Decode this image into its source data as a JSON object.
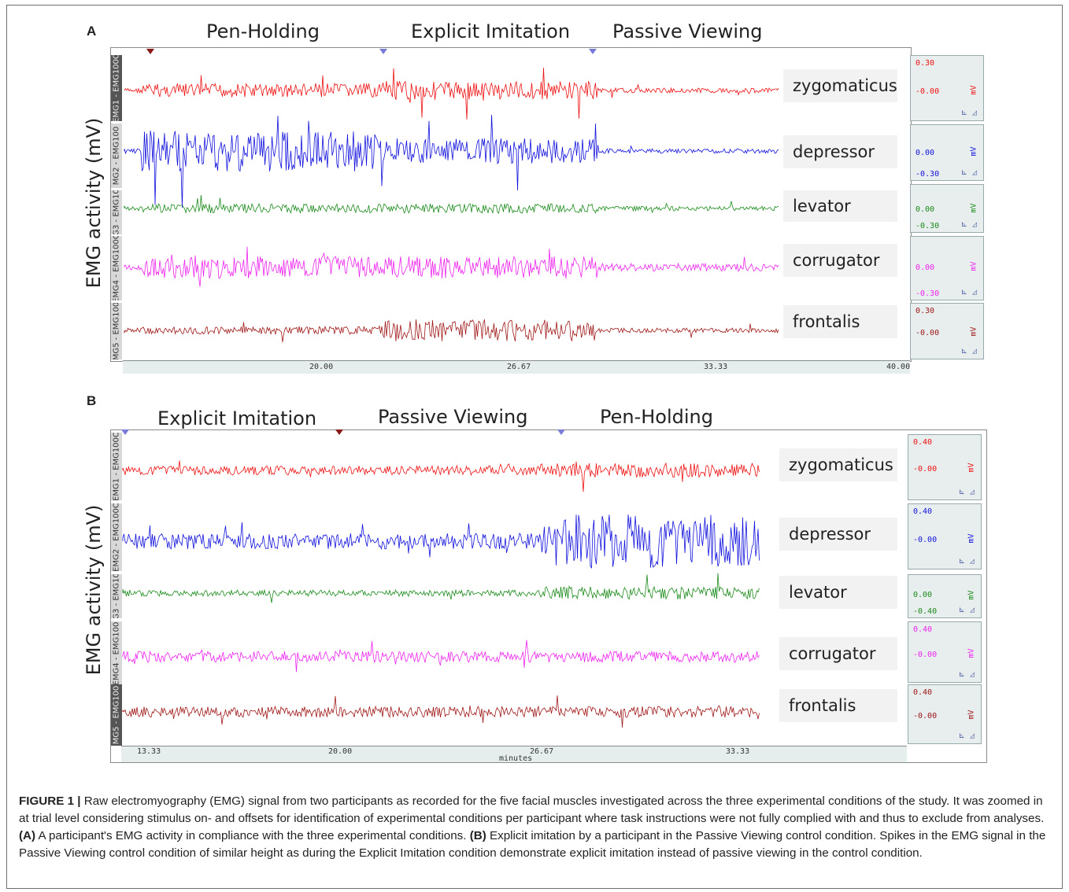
{
  "panel_a": {
    "letter": "A",
    "conditions": [
      "Pen-Holding",
      "Explicit Imitation",
      "Passive Viewing"
    ],
    "ylabel": "EMG activity (mV)",
    "channels": [
      {
        "strip": "EMG1 - EMG100C",
        "muscle": "zygomaticus",
        "color": "#ee1111",
        "scale_top": "0.30",
        "scale_mid": "-0.00",
        "scale_bot": "",
        "unit": "mV"
      },
      {
        "strip": "MG2 - EMG100",
        "muscle": "depressor",
        "color": "#1111dd",
        "scale_top": "",
        "scale_mid": "0.00",
        "scale_bot": "-0.30",
        "unit": "mV"
      },
      {
        "strip": "G3 - EMG10",
        "muscle": "levator",
        "color": "#1a8a1a",
        "scale_top": "",
        "scale_mid": "0.00",
        "scale_bot": "-0.30",
        "unit": "mV"
      },
      {
        "strip": "EMG4 - EMG100C",
        "muscle": "corrugator",
        "color": "#ee22ee",
        "scale_top": "",
        "scale_mid": "0.00",
        "scale_bot": "-0.30",
        "unit": "mV"
      },
      {
        "strip": "MG5 - EMG100",
        "muscle": "frontalis",
        "color": "#a01818",
        "scale_top": "0.30",
        "scale_mid": "-0.00",
        "scale_bot": "",
        "unit": "mV"
      }
    ],
    "ticks": [
      "20.00",
      "26.67",
      "33.33",
      "40.00"
    ]
  },
  "panel_b": {
    "letter": "B",
    "conditions": [
      "Explicit Imitation",
      "Passive Viewing",
      "Pen-Holding"
    ],
    "ylabel": "EMG activity (mV)",
    "channels": [
      {
        "strip": "EMG1 - EMG100C",
        "muscle": "zygomaticus",
        "color": "#ee1111",
        "scale_top": "0.40",
        "scale_mid": "-0.00",
        "scale_bot": "",
        "unit": "mV"
      },
      {
        "strip": "EMG2 - EMG100C",
        "muscle": "depressor",
        "color": "#1111dd",
        "scale_top": "0.40",
        "scale_mid": "-0.00",
        "scale_bot": "",
        "unit": "mV"
      },
      {
        "strip": "G3 - EMG10",
        "muscle": "levator",
        "color": "#1a8a1a",
        "scale_top": "",
        "scale_mid": "0.00",
        "scale_bot": "-0.40",
        "unit": "mV"
      },
      {
        "strip": "EMG4 - EMG100",
        "muscle": "corrugator",
        "color": "#ee22ee",
        "scale_top": "0.40",
        "scale_mid": "-0.00",
        "scale_bot": "",
        "unit": "mV"
      },
      {
        "strip": "MG5 - EMG100",
        "muscle": "frontalis",
        "color": "#a01818",
        "scale_top": "0.40",
        "scale_mid": "-0.00",
        "scale_bot": "",
        "unit": "mV"
      }
    ],
    "ticks": [
      "13.33",
      "20.00",
      "26.67",
      "33.33"
    ],
    "axis_unit": "minutes"
  },
  "caption": {
    "label": "FIGURE 1 |",
    "intro": " Raw electromyography (EMG) signal from two participants as recorded for the five facial muscles investigated across the three experimental conditions of the study. It was zoomed in at trial level considering stimulus on- and offsets for identification of experimental conditions per participant where task instructions were not fully complied with and thus to exclude from analyses. ",
    "a_label": "(A)",
    "a_text": " A participant's EMG activity in compliance with the three experimental conditions. ",
    "b_label": "(B)",
    "b_text": " Explicit imitation by a participant in the Passive Viewing control condition. Spikes in the EMG signal in the Passive Viewing control condition of similar height as during the Explicit Imitation condition demonstrate explicit imitation instead of passive viewing in the control condition."
  }
}
